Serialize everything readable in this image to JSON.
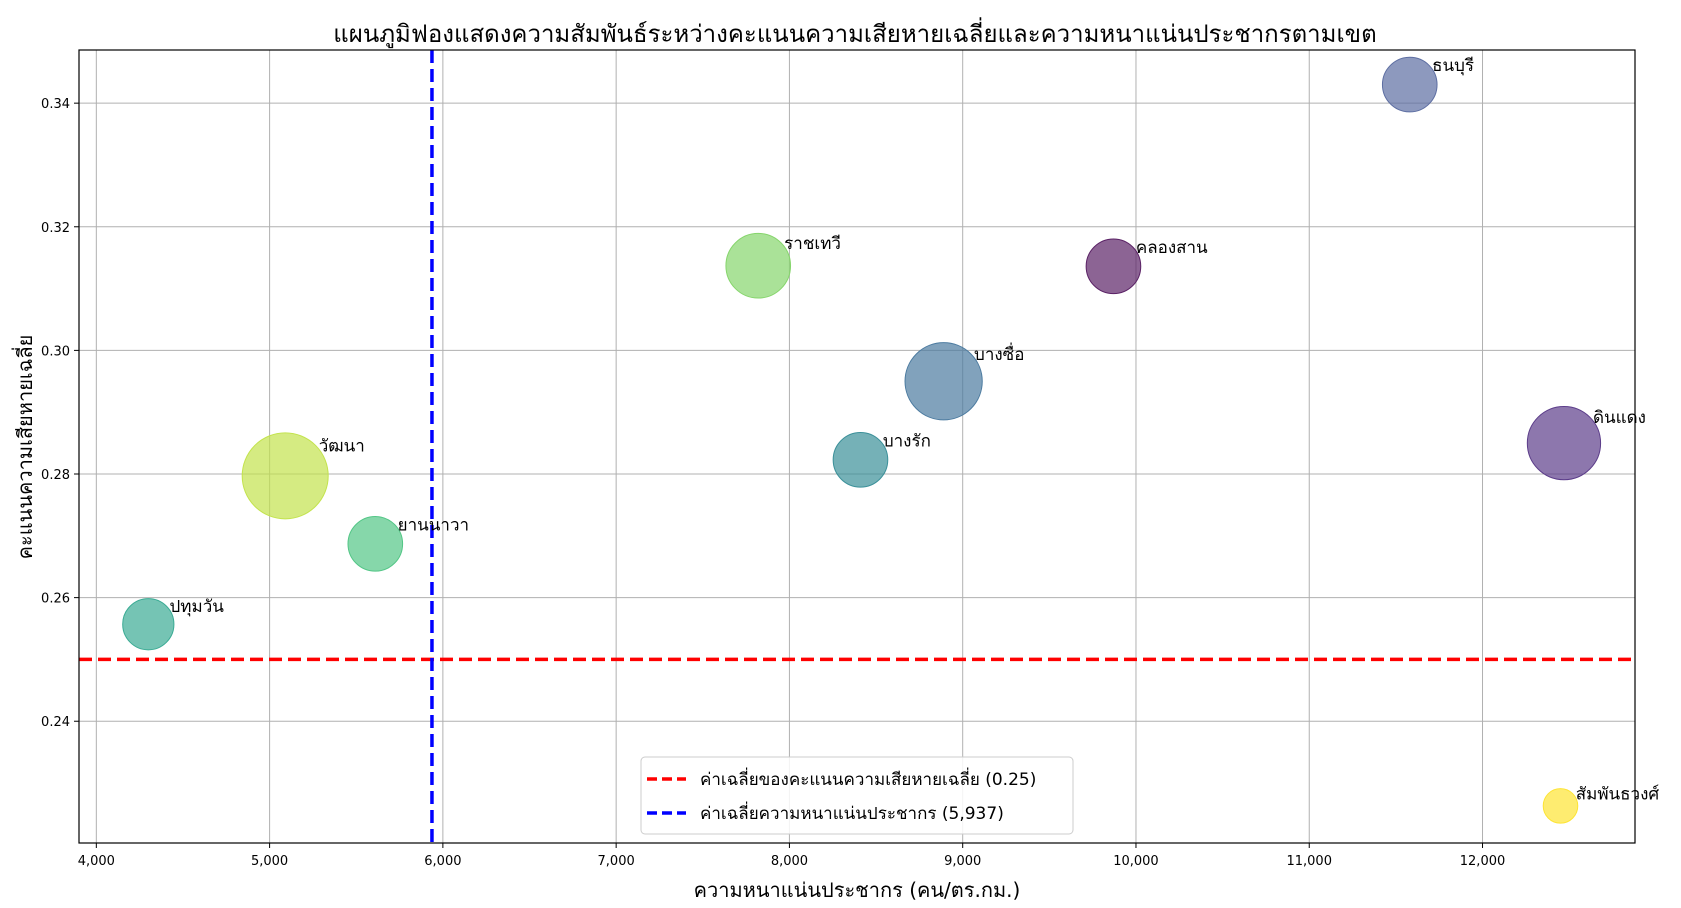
{
  "chart_data": {
    "type": "scatter",
    "title": "แผนภูมิฟองแสดงความสัมพันธ์ระหว่างคะแนนความเสียหายเฉลี่ยและความหนาแน่นประชากรตามเขต",
    "xlabel": "ความหนาแน่นประชากร (คน/ตร.กม.)",
    "ylabel": "คะแนนความเสียหายเฉลี่ย",
    "xlim": [
      3900,
      12880
    ],
    "ylim": [
      0.2203,
      0.3486
    ],
    "xticks": [
      4000,
      5000,
      6000,
      7000,
      8000,
      9000,
      10000,
      11000,
      12000
    ],
    "xtick_labels": [
      "4,000",
      "5,000",
      "6,000",
      "7,000",
      "8,000",
      "9,000",
      "10,000",
      "11,000",
      "12,000"
    ],
    "yticks": [
      0.24,
      0.26,
      0.28,
      0.3,
      0.32,
      0.34
    ],
    "ytick_labels": [
      "0.24",
      "0.26",
      "0.28",
      "0.30",
      "0.32",
      "0.34"
    ],
    "grid": true,
    "legend_position": "bottom-center",
    "points": [
      {
        "label": "ธนบุรี",
        "x": 11580,
        "y": 0.343,
        "size": 0.5,
        "color": "#5d6ea2"
      },
      {
        "label": "ราชเทวี",
        "x": 7820,
        "y": 0.3137,
        "size": 0.7,
        "color": "#86d56c"
      },
      {
        "label": "คลองสาน",
        "x": 9870,
        "y": 0.3136,
        "size": 0.5,
        "color": "#5b2266"
      },
      {
        "label": "บางซื่อ",
        "x": 8890,
        "y": 0.295,
        "size": 1.0,
        "color": "#4c7ba0"
      },
      {
        "label": "ดินแดง",
        "x": 12470,
        "y": 0.285,
        "size": 0.9,
        "color": "#5c3d8a"
      },
      {
        "label": "บางรัก",
        "x": 8410,
        "y": 0.2823,
        "size": 0.5,
        "color": "#3b9099"
      },
      {
        "label": "วัฒนา",
        "x": 5090,
        "y": 0.2797,
        "size": 1.24,
        "color": "#c3e34d"
      },
      {
        "label": "ยานนาวา",
        "x": 5610,
        "y": 0.2687,
        "size": 0.5,
        "color": "#53c686"
      },
      {
        "label": "ปทุมวัน",
        "x": 4300,
        "y": 0.2557,
        "size": 0.44,
        "color": "#3aab94"
      },
      {
        "label": "สัมพันธวงศ์",
        "x": 12450,
        "y": 0.2263,
        "size": 0.2,
        "color": "#fde433"
      }
    ],
    "reference_lines": [
      {
        "orientation": "horizontal",
        "value": 0.25,
        "color": "#ff0000",
        "label": "ค่าเฉลี่ยของคะแนนความเสียหายเฉลี่ย (0.25)"
      },
      {
        "orientation": "vertical",
        "value": 5937,
        "color": "#0000ff",
        "label": "ค่าเฉลี่ยความหนาแน่นประชากร (5,937)"
      }
    ]
  }
}
